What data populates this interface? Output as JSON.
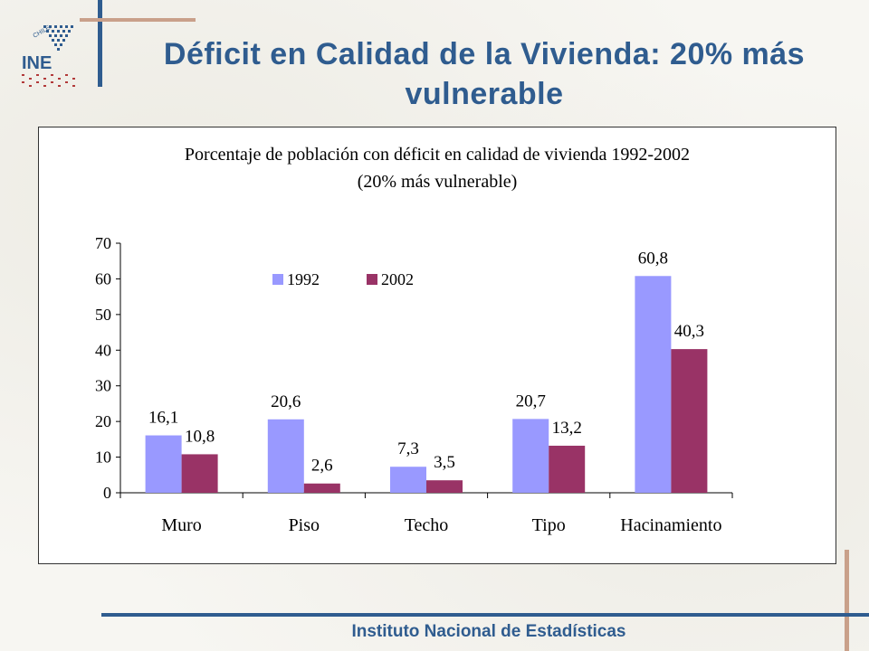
{
  "slide": {
    "title": "Déficit en Calidad de la Vivienda: 20% más vulnerable",
    "footer": "Instituto Nacional de Estadísticas",
    "logo_text": "INE",
    "logo_subtext": "CHILE"
  },
  "colors": {
    "accent_blue": "#2f5c8f",
    "accent_tan": "#c9a08a",
    "series_1992": "#9999ff",
    "series_2002": "#993366",
    "logo_red": "#b23a3a"
  },
  "chart_data": {
    "type": "bar",
    "title": "Porcentaje de población con déficit en calidad de vivienda 1992-2002",
    "subtitle": "(20% más vulnerable)",
    "xlabel": "",
    "ylabel": "",
    "categories": [
      "Muro",
      "Piso",
      "Techo",
      "Tipo",
      "Hacinamiento"
    ],
    "series": [
      {
        "name": "1992",
        "values": [
          16.1,
          20.6,
          7.3,
          20.7,
          60.8
        ],
        "labels": [
          "16,1",
          "20,6",
          "7,3",
          "20,7",
          "60,8"
        ]
      },
      {
        "name": "2002",
        "values": [
          10.8,
          2.6,
          3.5,
          13.2,
          40.3
        ],
        "labels": [
          "10,8",
          "2,6",
          "3,5",
          "13,2",
          "40,3"
        ]
      }
    ],
    "ylim": [
      0,
      70
    ],
    "yticks": [
      0,
      10,
      20,
      30,
      40,
      50,
      60,
      70
    ],
    "grid": false,
    "legend_position": "top-center"
  }
}
